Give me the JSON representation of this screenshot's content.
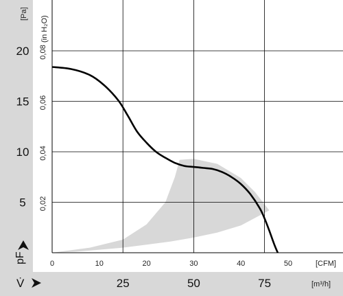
{
  "chart_data": {
    "type": "line",
    "y_unit_label": "[Pa]",
    "y2_unit_label": "(in H₂O)",
    "x_unit_label": "[CFM]",
    "x2_unit_label": "[m³/h]",
    "y_symbol": "pF",
    "x_symbol": "V̇",
    "pa_ticks": [
      "5",
      "10",
      "15",
      "20"
    ],
    "h2o_ticks": [
      "0,02",
      "0,04",
      "0,06",
      "0,08"
    ],
    "cfm_ticks": [
      "0",
      "10",
      "20",
      "30",
      "40",
      "50"
    ],
    "m3h_ticks": [
      "25",
      "50",
      "75"
    ],
    "x_range_cfm": [
      0,
      60
    ],
    "y_range_pa": [
      0,
      25
    ],
    "grid": true,
    "series": [
      {
        "x_cfm": [
          0,
          4,
          8,
          11,
          14,
          16,
          18,
          20,
          22,
          24,
          26,
          28,
          30,
          32,
          34,
          36,
          38,
          40,
          42,
          44,
          45,
          46,
          47,
          47.8
        ],
        "y_pa": [
          18.4,
          18.2,
          17.6,
          16.6,
          15.1,
          13.6,
          12.0,
          10.9,
          10.0,
          9.4,
          8.9,
          8.6,
          8.5,
          8.4,
          8.3,
          8.0,
          7.5,
          6.8,
          5.8,
          4.4,
          3.4,
          2.2,
          0.9,
          0
        ]
      }
    ],
    "operating_region": {
      "x_cfm": [
        0,
        8,
        15,
        20,
        24,
        26,
        27,
        30,
        35,
        40,
        43,
        46,
        40,
        35,
        30,
        25,
        20,
        15,
        10,
        5,
        0
      ],
      "y_pa": [
        0,
        0.5,
        1.3,
        2.8,
        5.0,
        7.5,
        9.2,
        9.3,
        8.8,
        7.4,
        6.0,
        4.2,
        2.7,
        2.0,
        1.5,
        1.1,
        0.8,
        0.5,
        0.3,
        0.1,
        0
      ]
    },
    "colors": {
      "line": "#000000",
      "region": "#d8d8d8",
      "band": "#d8d8d8",
      "grid": "#000000"
    }
  }
}
